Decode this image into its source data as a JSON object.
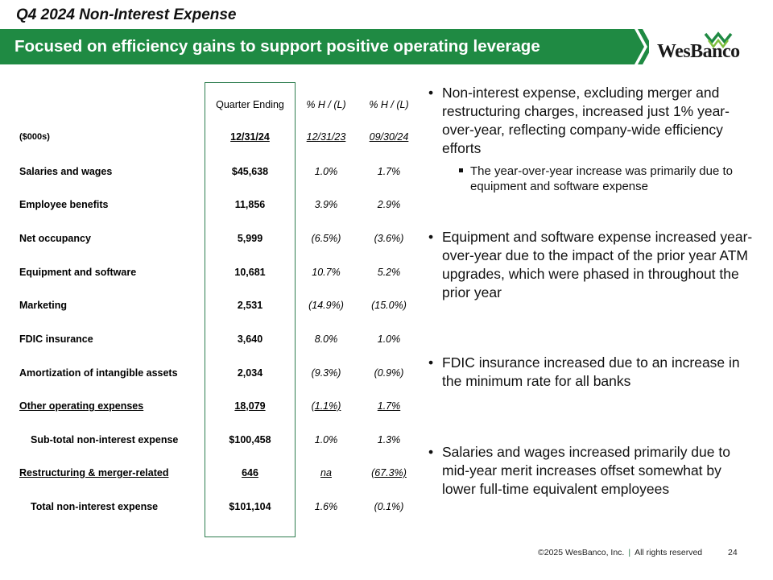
{
  "slide": {
    "title": "Q4 2024 Non-Interest Expense",
    "banner": "Focused on efficiency gains to support positive operating leverage",
    "logo_text": "WesBanco",
    "brand_color": "#1f8a43"
  },
  "table": {
    "header_quarter": "Quarter Ending",
    "header_pct1": "% H / (L)",
    "header_pct2": "% H / (L)",
    "units": "($000s)",
    "date_q": "12/31/24",
    "date_p1": "12/31/23",
    "date_p2": "09/30/24",
    "rows": [
      {
        "label": "Salaries and wages",
        "q": "$45,638",
        "p1": "1.0%",
        "p2": "1.7%"
      },
      {
        "label": "Employee benefits",
        "q": "11,856",
        "p1": "3.9%",
        "p2": "2.9%"
      },
      {
        "label": "Net occupancy",
        "q": "5,999",
        "p1": "(6.5%)",
        "p2": "(3.6%)"
      },
      {
        "label": "Equipment and software",
        "q": "10,681",
        "p1": "10.7%",
        "p2": "5.2%"
      },
      {
        "label": "Marketing",
        "q": "2,531",
        "p1": "(14.9%)",
        "p2": "(15.0%)"
      },
      {
        "label": "FDIC insurance",
        "q": "3,640",
        "p1": "8.0%",
        "p2": "1.0%"
      },
      {
        "label": "Amortization of intangible assets",
        "q": "2,034",
        "p1": "(9.3%)",
        "p2": "(0.9%)"
      },
      {
        "label": "Other operating expenses",
        "q": "18,079",
        "p1": "(1.1%)",
        "p2": "1.7%"
      },
      {
        "label": "Sub-total non-interest expense",
        "q": "$100,458",
        "p1": "1.0%",
        "p2": "1.3%"
      },
      {
        "label": "Restructuring & merger-related",
        "q": "646",
        "p1": "na",
        "p2": "(67.3%)"
      },
      {
        "label": "Total non-interest expense",
        "q": "$101,104",
        "p1": "1.6%",
        "p2": "(0.1%)"
      }
    ]
  },
  "bullets": {
    "b1": "Non-interest expense, excluding merger and restructuring charges, increased just 1% year-over-year, reflecting company-wide efficiency efforts",
    "b1_sub": "The year-over-year increase was primarily due to equipment and software expense",
    "b2": "Equipment and software expense increased year-over-year due to the impact of the prior year ATM upgrades, which were phased in throughout the prior year",
    "b3": "FDIC insurance increased due to an increase in the minimum rate for all banks",
    "b4": "Salaries and wages increased primarily due to mid-year merit increases offset somewhat by lower full-time equivalent employees"
  },
  "footer": {
    "copyright": "©2025 WesBanco, Inc.",
    "separator": "|",
    "rights": "All rights reserved",
    "page_number": "24"
  }
}
